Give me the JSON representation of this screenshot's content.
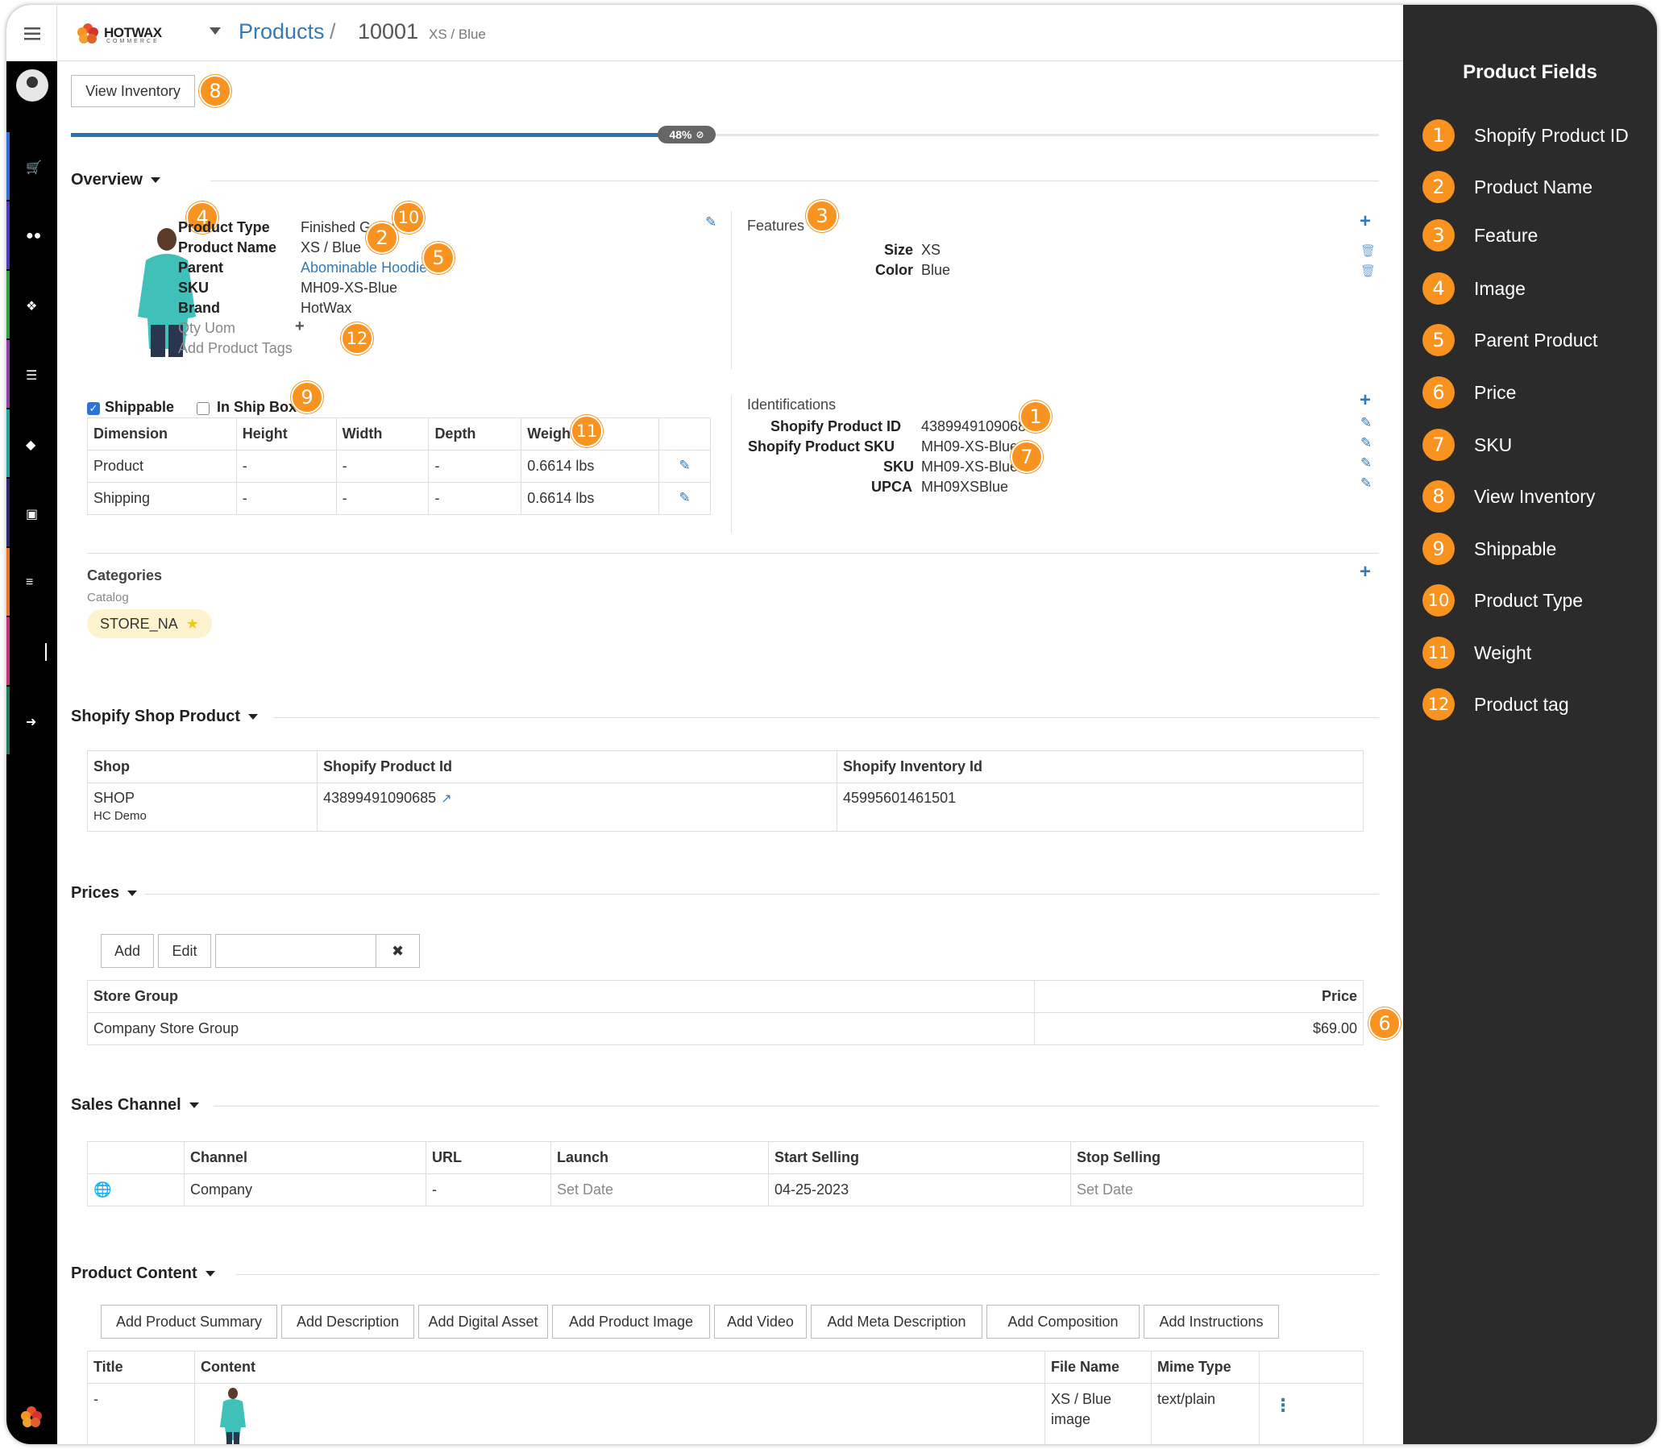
{
  "header": {
    "brand": "HOTWAX",
    "brand_sub": "COMMERCE",
    "crumb_products": "Products",
    "crumb_sep": "/",
    "crumb_id": "10001",
    "crumb_variant": "XS / Blue"
  },
  "toolbar": {
    "view_inventory": "View Inventory",
    "progress_percent": 48,
    "progress_label": "48%"
  },
  "overview": {
    "title": "Overview",
    "fields": [
      {
        "label": "Product Type",
        "value": "Finished Good"
      },
      {
        "label": "Product Name",
        "value": "XS / Blue"
      },
      {
        "label": "Parent",
        "value": "Abominable Hoodie"
      },
      {
        "label": "SKU",
        "value": "MH09-XS-Blue"
      },
      {
        "label": "Brand",
        "value": "HotWax"
      }
    ],
    "qty_uom": "Qty Uom",
    "add_tags": "Add Product Tags",
    "features_title": "Features",
    "features": [
      {
        "label": "Size",
        "value": "XS"
      },
      {
        "label": "Color",
        "value": "Blue"
      }
    ],
    "shippable": "Shippable",
    "in_ship_box": "In Ship Box",
    "dim_headers": [
      "Dimension",
      "Height",
      "Width",
      "Depth",
      "Weight"
    ],
    "dim_rows": [
      {
        "name": "Product",
        "height": "-",
        "width": "-",
        "depth": "-",
        "weight": "0.6614 lbs"
      },
      {
        "name": "Shipping",
        "height": "-",
        "width": "-",
        "depth": "-",
        "weight": "0.6614 lbs"
      }
    ],
    "ident_title": "Identifications",
    "identifications": [
      {
        "label": "Shopify Product ID",
        "value": "43899491090685"
      },
      {
        "label": "Shopify Product SKU",
        "value": "MH09-XS-Blue"
      },
      {
        "label": "SKU",
        "value": "MH09-XS-Blue"
      },
      {
        "label": "UPCA",
        "value": "MH09XSBlue"
      }
    ],
    "categories_title": "Categories",
    "catalog_label": "Catalog",
    "category_chip": "STORE_NA"
  },
  "shopify": {
    "title": "Shopify Shop Product",
    "headers": [
      "Shop",
      "Shopify Product Id",
      "Shopify Inventory Id"
    ],
    "row": {
      "shop": "SHOP",
      "shop_sub": "HC Demo",
      "product_id": "43899491090685",
      "inventory_id": "45995601461501"
    }
  },
  "prices": {
    "title": "Prices",
    "add": "Add",
    "edit": "Edit",
    "headers": [
      "Store Group",
      "Price"
    ],
    "row": {
      "group": "Company Store Group",
      "price": "$69.00"
    }
  },
  "sales": {
    "title": "Sales Channel",
    "headers": [
      "",
      "Channel",
      "URL",
      "Launch",
      "Start Selling",
      "Stop Selling"
    ],
    "row": {
      "channel": "Company",
      "url": "-",
      "launch": "Set Date",
      "start": "04-25-2023",
      "stop": "Set Date"
    }
  },
  "content": {
    "title": "Product Content",
    "buttons": [
      "Add Product Summary",
      "Add Description",
      "Add Digital Asset",
      "Add Product Image",
      "Add Video",
      "Add Meta Description",
      "Add Composition",
      "Add Instructions"
    ],
    "headers": [
      "Title",
      "Content",
      "File Name",
      "Mime Type"
    ],
    "row": {
      "title": "-",
      "file_name": "XS / Blue",
      "file_sub": "image",
      "mime": "text/plain"
    }
  },
  "legend": {
    "title": "Product Fields",
    "items": [
      {
        "n": "1",
        "label": "Shopify Product ID"
      },
      {
        "n": "2",
        "label": "Product Name"
      },
      {
        "n": "3",
        "label": "Feature"
      },
      {
        "n": "4",
        "label": "Image"
      },
      {
        "n": "5",
        "label": "Parent Product"
      },
      {
        "n": "6",
        "label": "Price"
      },
      {
        "n": "7",
        "label": "SKU"
      },
      {
        "n": "8",
        "label": "View Inventory"
      },
      {
        "n": "9",
        "label": "Shippable"
      },
      {
        "n": "10",
        "label": "Product Type"
      },
      {
        "n": "11",
        "label": "Weight"
      },
      {
        "n": "12",
        "label": "Product tag"
      }
    ]
  },
  "colors": {
    "accent": "#337ab7",
    "badge": "#f7931e",
    "panel": "#2b2b2b",
    "rail": "#000000"
  }
}
